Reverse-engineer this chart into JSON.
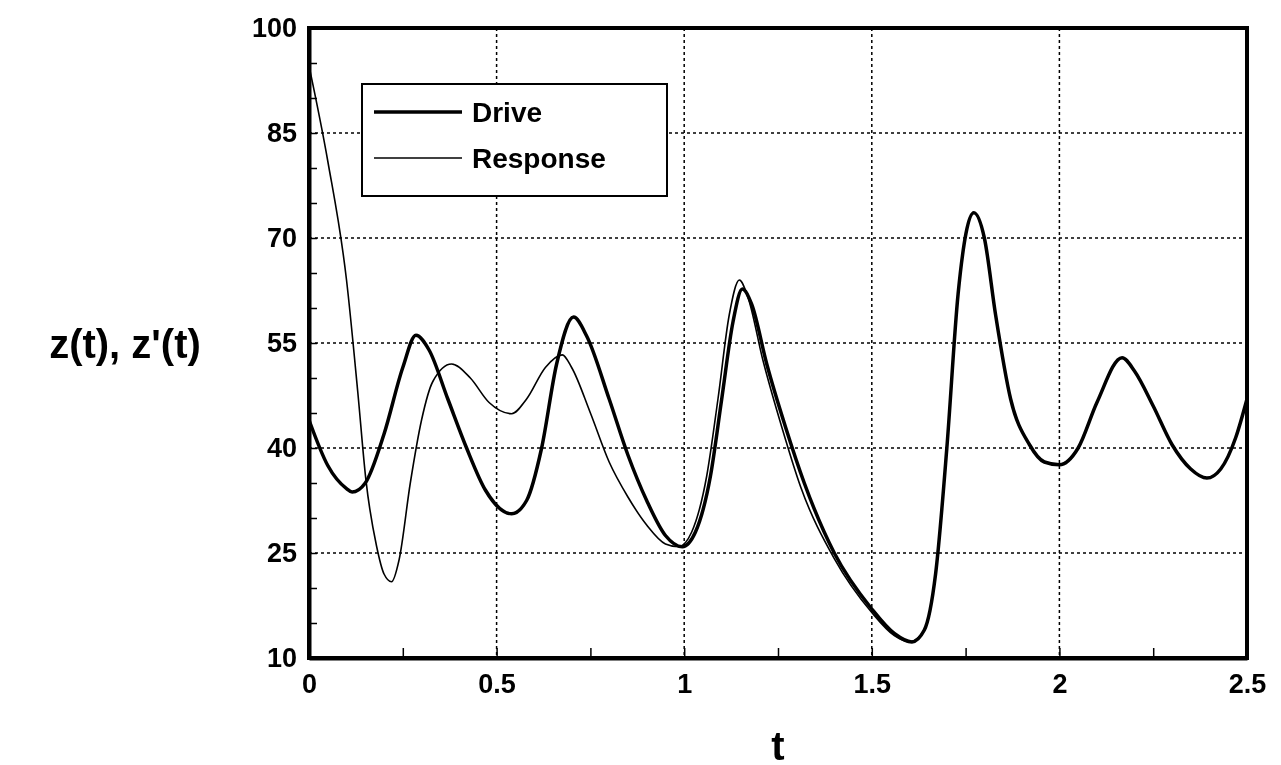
{
  "chart_data": {
    "type": "line",
    "xlabel": "t",
    "ylabel": "z(t), z'(t)",
    "xlim": [
      0,
      2.5
    ],
    "ylim": [
      10,
      100
    ],
    "xticks": [
      0,
      {
        "value": 0.25,
        "label": null
      },
      0.5,
      {
        "value": 0.75,
        "label": null
      },
      1,
      {
        "value": 1.25,
        "label": null
      },
      1.5,
      {
        "value": 1.75,
        "label": null
      },
      2,
      {
        "value": 2.25,
        "label": null
      },
      2.5
    ],
    "yticks": [
      10,
      {
        "value": 15,
        "label": null
      },
      {
        "value": 20,
        "label": null
      },
      25,
      {
        "value": 30,
        "label": null
      },
      {
        "value": 35,
        "label": null
      },
      40,
      {
        "value": 45,
        "label": null
      },
      {
        "value": 50,
        "label": null
      },
      55,
      {
        "value": 60,
        "label": null
      },
      {
        "value": 65,
        "label": null
      },
      70,
      {
        "value": 75,
        "label": null
      },
      {
        "value": 80,
        "label": null
      },
      85,
      {
        "value": 90,
        "label": null
      },
      {
        "value": 95,
        "label": null
      },
      100
    ],
    "grid": true,
    "legend": "top left",
    "line_style": "solid",
    "marker": "none",
    "series": [
      {
        "name": "Drive",
        "color": "#000000",
        "x": [
          0,
          0.05,
          0.1,
          0.115,
          0.15,
          0.2,
          0.25,
          0.285,
          0.32,
          0.37,
          0.42,
          0.47,
          0.54,
          0.58,
          0.62,
          0.66,
          0.705,
          0.74,
          0.8,
          0.85,
          0.9,
          0.95,
          0.995,
          1.03,
          1.07,
          1.1,
          1.13,
          1.155,
          1.18,
          1.22,
          1.27,
          1.32,
          1.4,
          1.5,
          1.56,
          1.607,
          1.64,
          1.67,
          1.7,
          1.73,
          1.772,
          1.8,
          1.83,
          1.87,
          1.92,
          1.96,
          2.0,
          2.05,
          2.1,
          2.167,
          2.2,
          2.25,
          2.3,
          2.35,
          2.393,
          2.43,
          2.47,
          2.5
        ],
        "values": [
          44,
          37.5,
          34.2,
          33.7,
          35,
          42,
          51.5,
          56.1,
          54,
          47,
          40,
          34,
          30.6,
          32.5,
          40,
          52,
          58.7,
          56,
          47,
          39,
          32.5,
          27.5,
          25.9,
          28,
          36,
          47,
          58,
          62.7,
          60.5,
          52,
          43,
          35,
          25,
          17,
          13.5,
          12.3,
          14,
          22,
          40,
          62,
          73.6,
          70,
          59,
          47,
          40.5,
          38,
          37.6,
          40,
          46.5,
          52.9,
          51,
          46,
          40.5,
          37,
          35.7,
          37,
          41.5,
          47
        ]
      },
      {
        "name": "Response",
        "color": "#000000",
        "x": [
          0,
          0.05,
          0.1,
          0.13,
          0.152,
          0.18,
          0.2,
          0.22,
          0.24,
          0.27,
          0.3,
          0.33,
          0.38,
          0.43,
          0.48,
          0.54,
          0.58,
          0.63,
          0.675,
          0.7,
          0.75,
          0.8,
          0.85,
          0.9,
          0.95,
          0.985,
          1.02,
          1.06,
          1.09,
          1.12,
          1.147,
          1.17,
          1.21,
          1.26,
          1.31,
          1.4,
          1.5,
          1.56,
          1.6,
          1.64,
          1.67,
          1.7,
          1.73,
          1.772,
          1.8,
          1.83,
          1.87,
          1.92,
          1.96,
          2.0,
          2.05,
          2.1,
          2.167,
          2.2,
          2.25,
          2.3,
          2.35,
          2.393,
          2.43,
          2.47,
          2.5
        ],
        "values": [
          94.6,
          81,
          64,
          48,
          35.3,
          26,
          22,
          20.9,
          24,
          35,
          44,
          49.5,
          52,
          50,
          46.5,
          44.9,
          47,
          51.5,
          53.3,
          51.5,
          45,
          38,
          33,
          29,
          26.3,
          25.9,
          28,
          36,
          47,
          59,
          64,
          61.5,
          52.5,
          43,
          34.5,
          24.2,
          16.5,
          13.2,
          12.3,
          14,
          22,
          40,
          62,
          73.6,
          70,
          59,
          47,
          40.5,
          38,
          37.6,
          40,
          46.5,
          52.9,
          51,
          46,
          40.5,
          37,
          35.7,
          37,
          41.5,
          47
        ]
      }
    ]
  }
}
